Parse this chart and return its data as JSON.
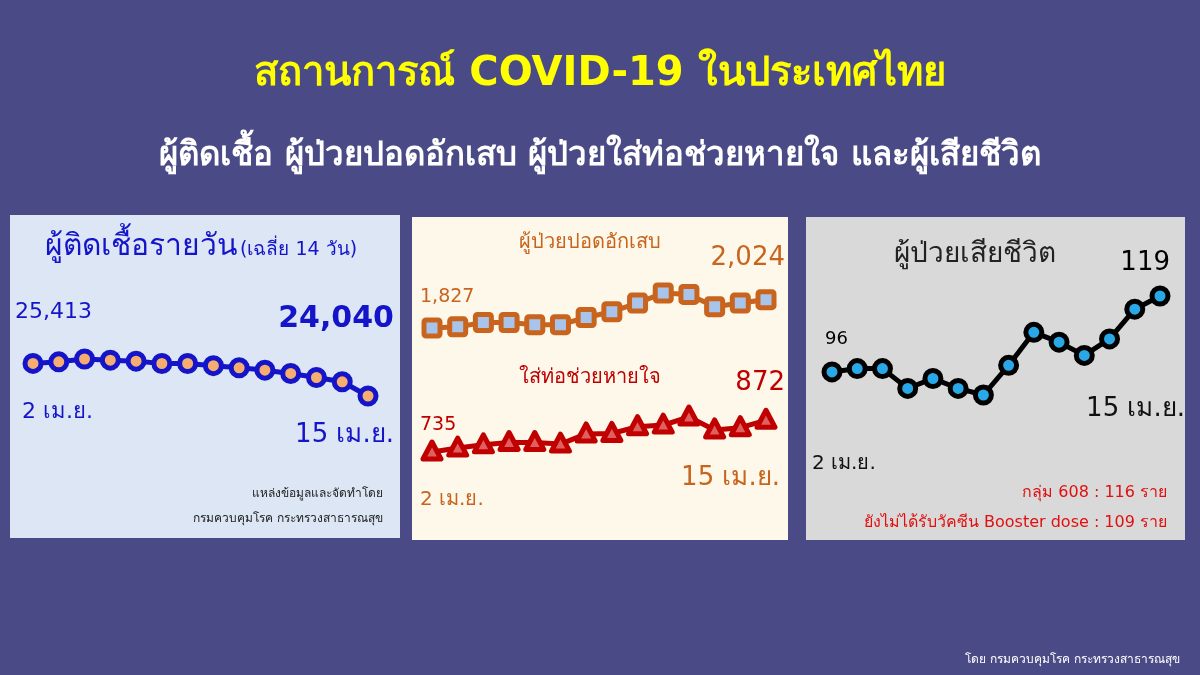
{
  "chart_data": [
    {
      "type": "other",
      "title": "สถานการณ์ COVID-19 ในประเทศไทย",
      "subtitle": "ผู้ติดเชื้อ ผู้ป่วยปอดอักเสบ ผู้ป่วยใส่ท่อช่วยหายใจ และผู้เสียชีวิต",
      "annotations": [
        "โดย กรมควบคุมโรค กระทรวงสาธารณสุข"
      ]
    },
    {
      "type": "line",
      "title": "ผู้ติดเชื้อรายวัน",
      "subtitle": "(เฉลี่ย 14 วัน)",
      "categories": [
        null,
        null,
        null,
        null,
        null,
        null,
        null,
        null,
        null,
        null,
        null,
        null,
        null,
        null
      ],
      "marker": "circle",
      "annotations": [
        "2 เม.ย.",
        "15 เม.ย.",
        "แหล่งข้อมูลและจัดทำโดย",
        "กรมควบคุมโรค กระทรวงสาธารณสุข"
      ],
      "series": [
        {
          "color": "#1414c8",
          "values": [
            25413,
            25480,
            25600,
            25550,
            25510,
            25410,
            25410,
            25320,
            25230,
            25130,
            24990,
            24820,
            24640,
            24040
          ],
          "value_labels": [
            "25,413",
            null,
            null,
            null,
            null,
            null,
            null,
            null,
            null,
            null,
            null,
            null,
            null,
            "24,040"
          ]
        }
      ]
    },
    {
      "type": "line",
      "categories": [
        null,
        null,
        null,
        null,
        null,
        null,
        null,
        null,
        null,
        null,
        null,
        null,
        null,
        null
      ],
      "marker": "square",
      "series": [
        {
          "name": "ผู้ป่วยปอดอักเสบ",
          "color": "#c8641e",
          "values": [
            1827,
            1835,
            1865,
            1865,
            1850,
            1850,
            1900,
            1940,
            2000,
            2070,
            2060,
            1975,
            2000,
            2024
          ],
          "value_labels": [
            "1,827",
            null,
            null,
            null,
            null,
            null,
            null,
            null,
            null,
            null,
            null,
            null,
            null,
            "2,024"
          ]
        }
      ]
    },
    {
      "type": "line",
      "categories": [
        null,
        null,
        null,
        null,
        null,
        null,
        null,
        null,
        null,
        null,
        null,
        null,
        null,
        null
      ],
      "marker": "triangle",
      "annotations": [
        "2 เม.ย.",
        "15 เม.ย."
      ],
      "series": [
        {
          "name": "ใส่ท่อช่วยหายใจ",
          "color": "#c00000",
          "values": [
            735,
            752,
            766,
            776,
            776,
            769,
            813,
            815,
            844,
            851,
            886,
            830,
            840,
            872
          ],
          "value_labels": [
            "735",
            null,
            null,
            null,
            null,
            null,
            null,
            null,
            null,
            null,
            null,
            null,
            null,
            "872"
          ]
        }
      ]
    },
    {
      "type": "line",
      "title": "ผู้ป่วยเสียชีวิต",
      "categories": [
        null,
        null,
        null,
        null,
        null,
        null,
        null,
        null,
        null,
        null,
        null,
        null,
        null,
        null
      ],
      "marker": "circle",
      "annotations": [
        "2 เม.ย.",
        "15 เม.ย.",
        "กลุ่ม 608 : 116 ราย",
        "ยังไม่ได้รับวัคซีน Booster dose : 109 ราย"
      ],
      "series": [
        {
          "color": "#000000",
          "values": [
            96,
            97,
            97,
            91,
            94,
            91,
            89,
            98,
            108,
            105,
            101,
            106,
            115,
            119
          ],
          "value_labels": [
            "96",
            null,
            null,
            null,
            null,
            null,
            null,
            null,
            null,
            null,
            null,
            null,
            null,
            "119"
          ]
        }
      ]
    }
  ]
}
